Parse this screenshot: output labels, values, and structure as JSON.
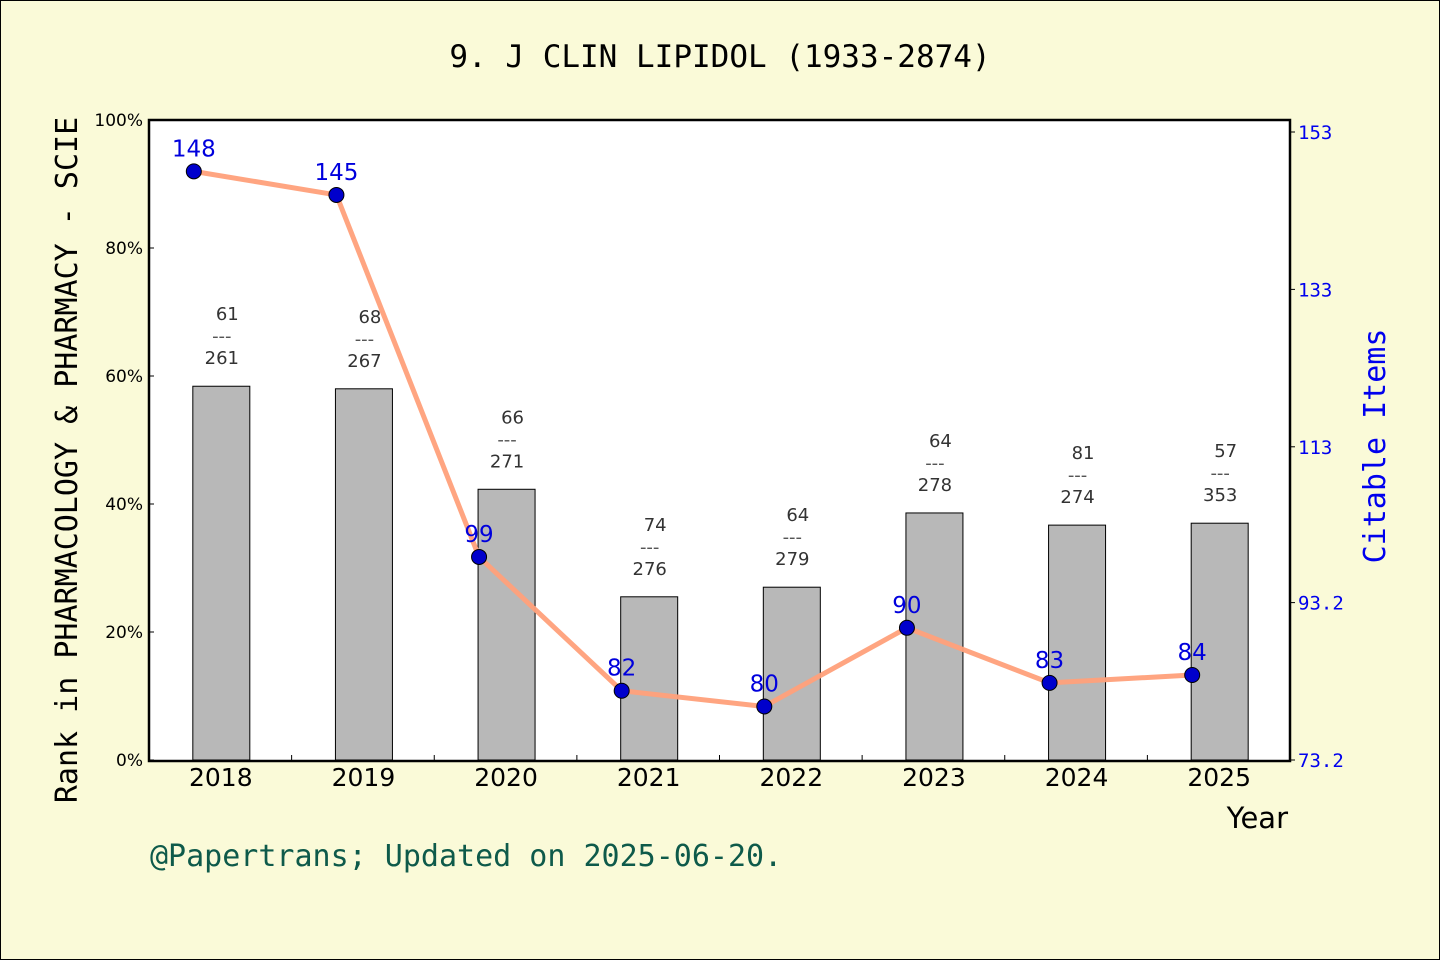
{
  "chart_data": {
    "type": "bar+line",
    "title": "9. J CLIN LIPIDOL (1933-2874)",
    "xlabel": "Year",
    "ylabel_left": "Rank in PHARMACOLOGY & PHARMACY - SCIE",
    "ylabel_right": "Citable Items",
    "categories": [
      "2018",
      "2019",
      "2020",
      "2021",
      "2022",
      "2023",
      "2024",
      "2025"
    ],
    "left_axis": {
      "range": [
        0,
        100
      ],
      "ticks": [
        "0%",
        "20%",
        "40%",
        "60%",
        "80%",
        "100%"
      ]
    },
    "right_axis": {
      "range": [
        73.2,
        153
      ],
      "ticks": [
        "73.2",
        "93.2",
        "113",
        "133",
        "153"
      ]
    },
    "bars": {
      "values_percent": [
        58.4,
        58.0,
        42.3,
        25.5,
        27.0,
        38.6,
        36.7,
        37.0
      ],
      "rank_labels": [
        "61",
        "68",
        "66",
        "74",
        "64",
        "64",
        "81",
        "57"
      ],
      "total_labels": [
        "261",
        "267",
        "271",
        "276",
        "279",
        "278",
        "274",
        "353"
      ],
      "separator": "---",
      "color": "#b8b8b8"
    },
    "line": {
      "values": [
        148,
        145,
        99,
        82,
        80,
        90,
        83,
        84
      ],
      "labels": [
        "148",
        "145",
        "99",
        "82",
        "80",
        "90",
        "83",
        "84"
      ],
      "line_color": "#ffa07a",
      "marker_color": "#0000cc",
      "label_color": "#0000dd"
    },
    "grid": false
  },
  "footer": "@Papertrans; Updated on 2025-06-20."
}
